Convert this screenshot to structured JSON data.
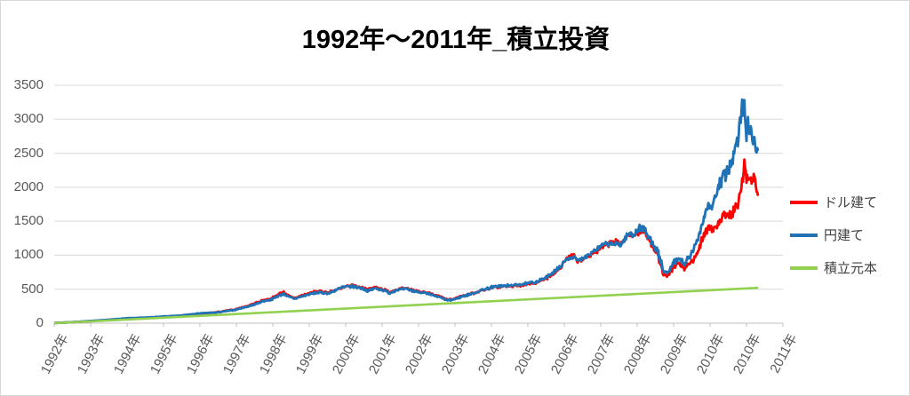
{
  "chart_data": {
    "type": "line",
    "title": "1992年～2011年_積立投資",
    "legend_position": "right",
    "grid": "horizontal",
    "x_axis": {
      "tick_labels": [
        "1992年",
        "1993年",
        "1994年",
        "1995年",
        "1996年",
        "1997年",
        "1998年",
        "1999年",
        "2000年",
        "2001年",
        "2002年",
        "2003年",
        "2004年",
        "2005年",
        "2006年",
        "2007年",
        "2008年",
        "2009年",
        "2010年",
        "2010年",
        "2011年"
      ],
      "range": [
        1992,
        2011.5
      ]
    },
    "y_axis": {
      "tick_labels": [
        "0",
        "500",
        "1000",
        "1500",
        "2000",
        "2500",
        "3000",
        "3500"
      ],
      "range": [
        0,
        3500
      ],
      "tick_interval": 500
    },
    "colors": {
      "grid": "#d9d9d9",
      "axis_line": "#bfbfbf",
      "axis_text": "#595959",
      "legend_text": "#404040",
      "title_text": "#000000"
    },
    "series": [
      {
        "name": "ドル建て",
        "color": "#ff0000",
        "points": [
          [
            1992.0,
            2
          ],
          [
            1992.5,
            14
          ],
          [
            1993.0,
            30
          ],
          [
            1993.5,
            48
          ],
          [
            1994.0,
            68
          ],
          [
            1994.5,
            78
          ],
          [
            1995.0,
            92
          ],
          [
            1995.5,
            110
          ],
          [
            1996.0,
            138
          ],
          [
            1996.5,
            160
          ],
          [
            1997.0,
            200
          ],
          [
            1997.4,
            260
          ],
          [
            1997.6,
            300
          ],
          [
            1997.8,
            340
          ],
          [
            1998.0,
            360
          ],
          [
            1998.2,
            420
          ],
          [
            1998.35,
            460
          ],
          [
            1998.5,
            400
          ],
          [
            1998.65,
            370
          ],
          [
            1999.0,
            430
          ],
          [
            1999.3,
            470
          ],
          [
            1999.6,
            450
          ],
          [
            2000.0,
            520
          ],
          [
            2000.25,
            560
          ],
          [
            2000.5,
            530
          ],
          [
            2000.7,
            490
          ],
          [
            2000.9,
            530
          ],
          [
            2001.1,
            500
          ],
          [
            2001.3,
            460
          ],
          [
            2001.5,
            500
          ],
          [
            2001.75,
            510
          ],
          [
            2002.0,
            480
          ],
          [
            2002.2,
            460
          ],
          [
            2002.5,
            420
          ],
          [
            2002.75,
            380
          ],
          [
            2002.9,
            340
          ],
          [
            2003.1,
            360
          ],
          [
            2003.3,
            400
          ],
          [
            2003.6,
            440
          ],
          [
            2003.9,
            490
          ],
          [
            2004.2,
            530
          ],
          [
            2004.5,
            540
          ],
          [
            2004.8,
            550
          ],
          [
            2005.0,
            560
          ],
          [
            2005.3,
            590
          ],
          [
            2005.6,
            650
          ],
          [
            2005.8,
            720
          ],
          [
            2006.0,
            800
          ],
          [
            2006.2,
            950
          ],
          [
            2006.35,
            1020
          ],
          [
            2006.5,
            900
          ],
          [
            2006.65,
            950
          ],
          [
            2006.8,
            1000
          ],
          [
            2007.0,
            1050
          ],
          [
            2007.2,
            1120
          ],
          [
            2007.5,
            1200
          ],
          [
            2007.7,
            1180
          ],
          [
            2007.9,
            1280
          ],
          [
            2008.1,
            1320
          ],
          [
            2008.3,
            1380
          ],
          [
            2008.45,
            1250
          ],
          [
            2008.6,
            1150
          ],
          [
            2008.75,
            950
          ],
          [
            2008.9,
            700
          ],
          [
            2009.0,
            680
          ],
          [
            2009.15,
            820
          ],
          [
            2009.3,
            880
          ],
          [
            2009.45,
            820
          ],
          [
            2009.6,
            850
          ],
          [
            2009.8,
            1000
          ],
          [
            2010.0,
            1330
          ],
          [
            2010.15,
            1420
          ],
          [
            2010.3,
            1380
          ],
          [
            2010.5,
            1520
          ],
          [
            2010.65,
            1600
          ],
          [
            2010.8,
            1620
          ],
          [
            2010.95,
            1750
          ],
          [
            2011.0,
            1850
          ],
          [
            2011.08,
            2200
          ],
          [
            2011.13,
            2330
          ],
          [
            2011.18,
            2100
          ],
          [
            2011.25,
            2250
          ],
          [
            2011.32,
            2080
          ],
          [
            2011.38,
            2180
          ],
          [
            2011.44,
            2050
          ],
          [
            2011.5,
            1870
          ]
        ]
      },
      {
        "name": "円建て",
        "color": "#1f72b6",
        "points": [
          [
            1992.0,
            2
          ],
          [
            1992.5,
            15
          ],
          [
            1993.0,
            33
          ],
          [
            1993.5,
            50
          ],
          [
            1994.0,
            72
          ],
          [
            1994.5,
            82
          ],
          [
            1995.0,
            98
          ],
          [
            1995.5,
            112
          ],
          [
            1996.0,
            142
          ],
          [
            1996.5,
            158
          ],
          [
            1997.0,
            195
          ],
          [
            1997.4,
            250
          ],
          [
            1997.6,
            285
          ],
          [
            1997.8,
            325
          ],
          [
            1998.0,
            345
          ],
          [
            1998.2,
            400
          ],
          [
            1998.35,
            430
          ],
          [
            1998.5,
            385
          ],
          [
            1998.65,
            360
          ],
          [
            1999.0,
            415
          ],
          [
            1999.3,
            450
          ],
          [
            1999.6,
            440
          ],
          [
            2000.0,
            530
          ],
          [
            2000.25,
            545
          ],
          [
            2000.5,
            520
          ],
          [
            2000.7,
            475
          ],
          [
            2000.9,
            515
          ],
          [
            2001.1,
            490
          ],
          [
            2001.3,
            445
          ],
          [
            2001.5,
            490
          ],
          [
            2001.75,
            500
          ],
          [
            2002.0,
            470
          ],
          [
            2002.2,
            450
          ],
          [
            2002.5,
            410
          ],
          [
            2002.75,
            370
          ],
          [
            2002.9,
            335
          ],
          [
            2003.1,
            350
          ],
          [
            2003.3,
            395
          ],
          [
            2003.6,
            435
          ],
          [
            2003.9,
            500
          ],
          [
            2004.2,
            540
          ],
          [
            2004.5,
            550
          ],
          [
            2004.8,
            560
          ],
          [
            2005.0,
            575
          ],
          [
            2005.3,
            600
          ],
          [
            2005.6,
            660
          ],
          [
            2005.8,
            740
          ],
          [
            2006.0,
            820
          ],
          [
            2006.2,
            930
          ],
          [
            2006.35,
            980
          ],
          [
            2006.5,
            920
          ],
          [
            2006.65,
            960
          ],
          [
            2006.8,
            1020
          ],
          [
            2007.0,
            1080
          ],
          [
            2007.2,
            1150
          ],
          [
            2007.5,
            1170
          ],
          [
            2007.7,
            1160
          ],
          [
            2007.9,
            1300
          ],
          [
            2008.1,
            1340
          ],
          [
            2008.3,
            1420
          ],
          [
            2008.45,
            1280
          ],
          [
            2008.6,
            1180
          ],
          [
            2008.75,
            1000
          ],
          [
            2008.9,
            740
          ],
          [
            2009.0,
            730
          ],
          [
            2009.15,
            880
          ],
          [
            2009.3,
            950
          ],
          [
            2009.45,
            880
          ],
          [
            2009.6,
            950
          ],
          [
            2009.8,
            1180
          ],
          [
            2010.0,
            1550
          ],
          [
            2010.1,
            1750
          ],
          [
            2010.2,
            1700
          ],
          [
            2010.35,
            1900
          ],
          [
            2010.5,
            2100
          ],
          [
            2010.65,
            2250
          ],
          [
            2010.8,
            2420
          ],
          [
            2010.9,
            2600
          ],
          [
            2011.0,
            2900
          ],
          [
            2011.06,
            3250
          ],
          [
            2011.1,
            3100
          ],
          [
            2011.13,
            3200
          ],
          [
            2011.17,
            2700
          ],
          [
            2011.22,
            3050
          ],
          [
            2011.28,
            2850
          ],
          [
            2011.35,
            2700
          ],
          [
            2011.42,
            2600
          ],
          [
            2011.5,
            2520
          ]
        ]
      },
      {
        "name": "積立元本",
        "color": "#92d050",
        "points": [
          [
            1992.0,
            0
          ],
          [
            2011.5,
            520
          ]
        ]
      }
    ]
  }
}
